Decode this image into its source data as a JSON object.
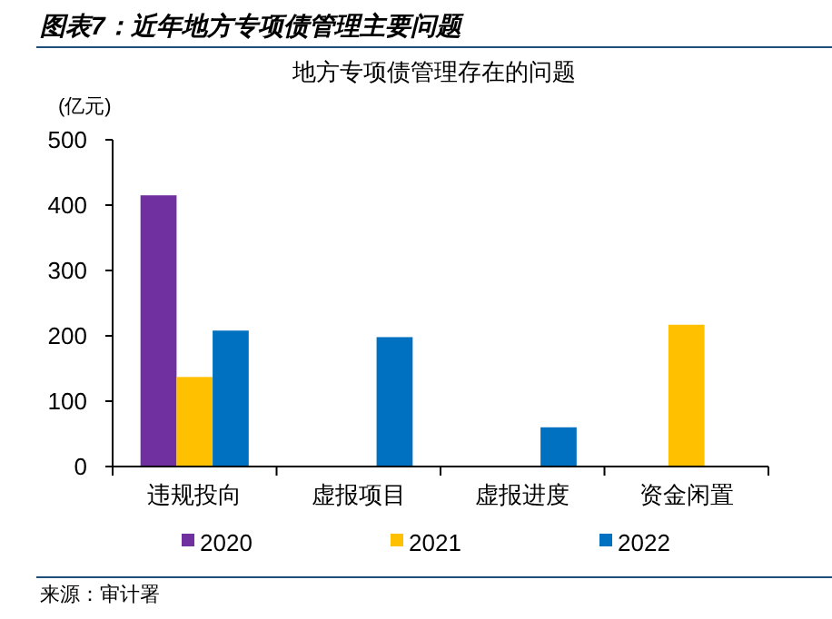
{
  "chart_data": {
    "type": "bar",
    "title": "图表7：近年地方专项债管理主要问题",
    "subtitle": "地方专项债管理存在的问题",
    "ylabel": "(亿元)",
    "categories": [
      "违规投向",
      "虚报项目",
      "虚报进度",
      "资金闲置"
    ],
    "series": [
      {
        "name": "2020",
        "color": "#7030a0",
        "values": [
          415,
          null,
          null,
          null
        ]
      },
      {
        "name": "2021",
        "color": "#ffc000",
        "values": [
          137,
          null,
          null,
          217
        ]
      },
      {
        "name": "2022",
        "color": "#0070c0",
        "values": [
          208,
          198,
          60,
          null
        ]
      }
    ],
    "ylim": [
      0,
      500
    ],
    "yticks": [
      0,
      100,
      200,
      300,
      400,
      500
    ],
    "grid": false,
    "legend": "bottom",
    "annotations": [
      "来源：审计署"
    ]
  }
}
